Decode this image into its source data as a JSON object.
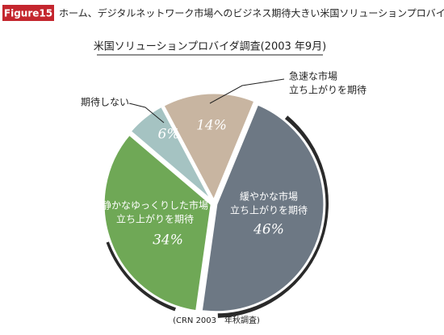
{
  "header": {
    "badge": "Figure15",
    "title": "ホーム、デジタルネットワーク市場へのビジネス期待大きい米国ソリューションプロバイダ"
  },
  "chart_data": {
    "type": "pie",
    "title": "米国ソリューションプロバイダ調査(2003 年9月)",
    "categories": [
      [
        "急速な市場",
        "立ち上がりを期待"
      ],
      [
        "緩やかな市場",
        "立ち上がりを期待"
      ],
      [
        "静かなゆっくりした市場",
        "立ち上がりを期待"
      ],
      [
        "期待しない"
      ]
    ],
    "values": [
      14,
      46,
      34,
      6
    ],
    "value_labels": [
      "14%",
      "46%",
      "34%",
      "6%"
    ],
    "colors": [
      "#c8b5a1",
      "#6d7884",
      "#6fa856",
      "#a5c3c2"
    ],
    "source": "(CRN 2003　年秋調査)"
  }
}
